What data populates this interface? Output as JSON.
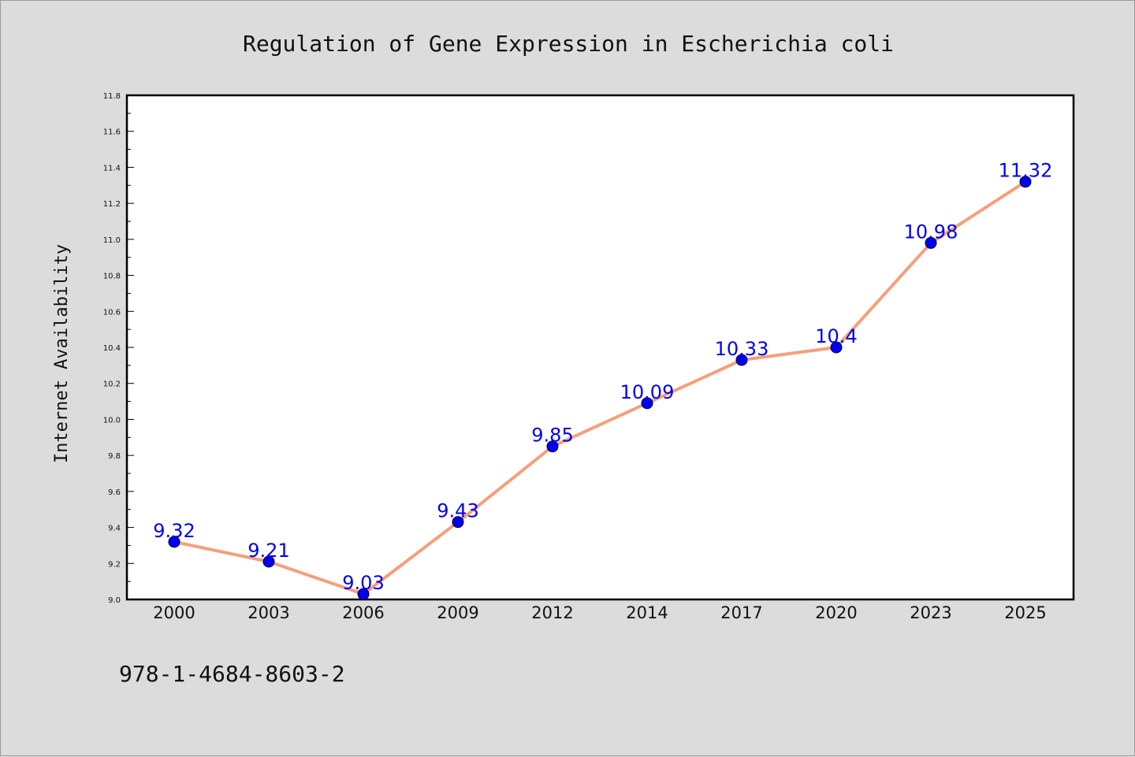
{
  "chart_data": {
    "type": "line",
    "title": "Regulation of Gene Expression in Escherichia coli",
    "xlabel": "",
    "ylabel": "Internet Availability",
    "categories": [
      "2000",
      "2003",
      "2006",
      "2009",
      "2012",
      "2014",
      "2017",
      "2020",
      "2023",
      "2025"
    ],
    "series": [
      {
        "values": [
          9.32,
          9.21,
          9.03,
          9.43,
          9.85,
          10.09,
          10.33,
          10.4,
          10.98,
          11.32
        ]
      }
    ],
    "data_labels": [
      "9.32",
      "9.21",
      "9.03",
      "9.43",
      "9.85",
      "10.09",
      "10.33",
      "10.4",
      "10.98",
      "11.32"
    ],
    "ylim": [
      9.0,
      11.8
    ],
    "yticks": [
      "9.0",
      "9.2",
      "9.4",
      "9.6",
      "9.8",
      "10.0",
      "10.2",
      "10.4",
      "10.6",
      "10.8",
      "11.0",
      "11.2",
      "11.4",
      "11.6",
      "11.8"
    ],
    "grid": false,
    "legend": "none",
    "colors": {
      "line": "#f4a07a",
      "marker": "#0000ee",
      "label": "#0000ee",
      "background": "#dcdcdc",
      "plot": "#ffffff"
    }
  },
  "footer": {
    "code": "978-1-4684-8603-2"
  }
}
